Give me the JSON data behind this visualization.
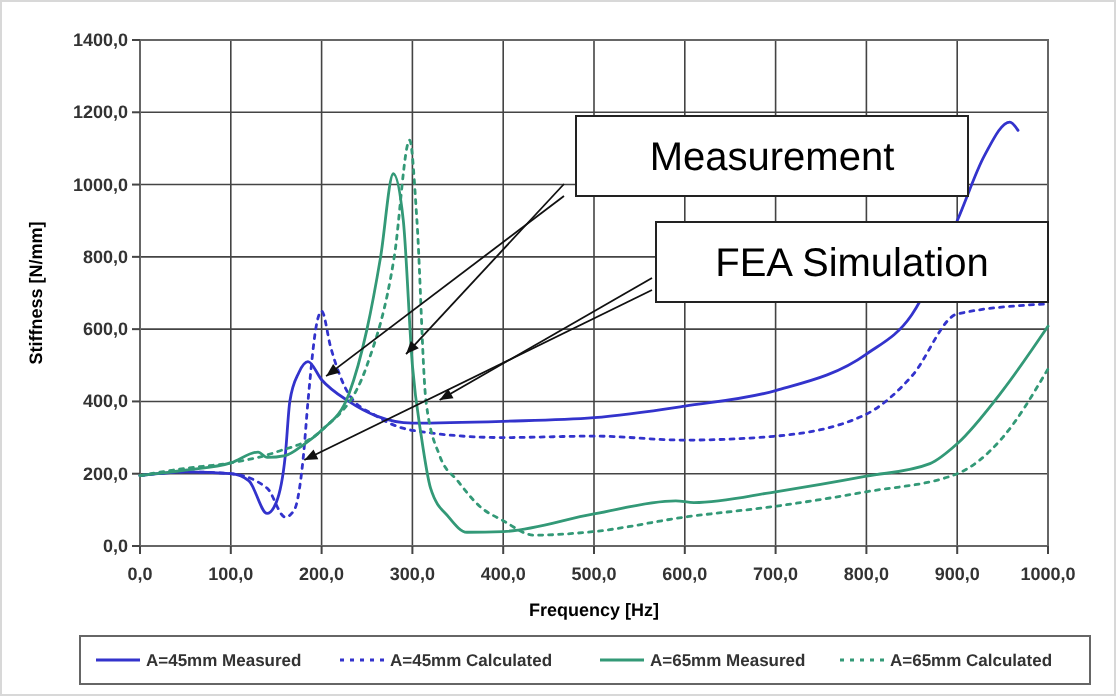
{
  "chart_data": {
    "type": "line",
    "xlabel": "Frequency [Hz]",
    "ylabel": "Stiffness [N/mm]",
    "xlim": [
      0,
      1000
    ],
    "xticks": [
      {
        "value": 0,
        "label": "0,0"
      },
      {
        "value": 100,
        "label": "100,0"
      },
      {
        "value": 200,
        "label": "200,0"
      },
      {
        "value": 300,
        "label": "300,0"
      },
      {
        "value": 400,
        "label": "400,0"
      },
      {
        "value": 500,
        "label": "500,0"
      },
      {
        "value": 600,
        "label": "600,0"
      },
      {
        "value": 700,
        "label": "700,0"
      },
      {
        "value": 800,
        "label": "800,0"
      },
      {
        "value": 900,
        "label": "900,0"
      },
      {
        "value": 1000,
        "label": "1000,0"
      }
    ],
    "ylim": [
      0,
      1400
    ],
    "yticks": [
      {
        "value": 0,
        "label": "0,0"
      },
      {
        "value": 200,
        "label": "200,0"
      },
      {
        "value": 400,
        "label": "400,0"
      },
      {
        "value": 600,
        "label": "600,0"
      },
      {
        "value": 800,
        "label": "800,0"
      },
      {
        "value": 1000,
        "label": "1000,0"
      },
      {
        "value": 1200,
        "label": "1200,0"
      },
      {
        "value": 1400,
        "label": "1400,0"
      }
    ],
    "grid": true,
    "legend": "bottom",
    "annotations": [
      "Measurement",
      "FEA Simulation"
    ],
    "series": [
      {
        "name": "A=45mm Measured",
        "color": "#3333cc",
        "line_style": "solid",
        "x": [
          0,
          20,
          50,
          100,
          120,
          140,
          150,
          160,
          165,
          175,
          185,
          200,
          230,
          260,
          300,
          400,
          500,
          600,
          700,
          800,
          850,
          900,
          930,
          958,
          967
        ],
        "values": [
          195,
          200,
          205,
          200,
          180,
          90,
          120,
          250,
          400,
          480,
          510,
          460,
          400,
          360,
          340,
          345,
          355,
          387,
          430,
          531,
          640,
          900,
          1080,
          1173,
          1150
        ]
      },
      {
        "name": "A=45mm Calculated",
        "color": "#3333cc",
        "line_style": "dotted",
        "x": [
          0,
          50,
          100,
          140,
          160,
          170,
          180,
          185,
          195,
          200,
          210,
          230,
          260,
          300,
          400,
          500,
          600,
          700,
          800,
          850,
          900,
          1000
        ],
        "values": [
          195,
          205,
          200,
          160,
          80,
          100,
          250,
          400,
          620,
          650,
          550,
          420,
          360,
          320,
          300,
          304,
          293,
          304,
          365,
          470,
          642,
          670
        ]
      },
      {
        "name": "A=65mm Measured",
        "color": "#339977",
        "line_style": "solid",
        "x": [
          0,
          50,
          100,
          130,
          140,
          160,
          180,
          200,
          230,
          250,
          265,
          279,
          290,
          300,
          310,
          320,
          340,
          360,
          400,
          500,
          590,
          610,
          700,
          800,
          870,
          900,
          950,
          1000
        ],
        "values": [
          195,
          210,
          230,
          260,
          245,
          250,
          280,
          320,
          420,
          600,
          800,
          1030,
          900,
          500,
          300,
          160,
          80,
          38,
          40,
          89,
          125,
          120,
          150,
          193,
          228,
          283,
          430,
          608
        ]
      },
      {
        "name": "A=65mm Calculated",
        "color": "#339977",
        "line_style": "dotted",
        "x": [
          0,
          50,
          100,
          150,
          200,
          250,
          280,
          297,
          305,
          315,
          330,
          350,
          374,
          400,
          434,
          500,
          600,
          700,
          800,
          900,
          950,
          1000
        ],
        "values": [
          195,
          215,
          230,
          260,
          320,
          500,
          800,
          1123,
          900,
          400,
          250,
          180,
          110,
          70,
          30,
          40,
          80,
          110,
          150,
          200,
          300,
          490
        ]
      }
    ]
  }
}
